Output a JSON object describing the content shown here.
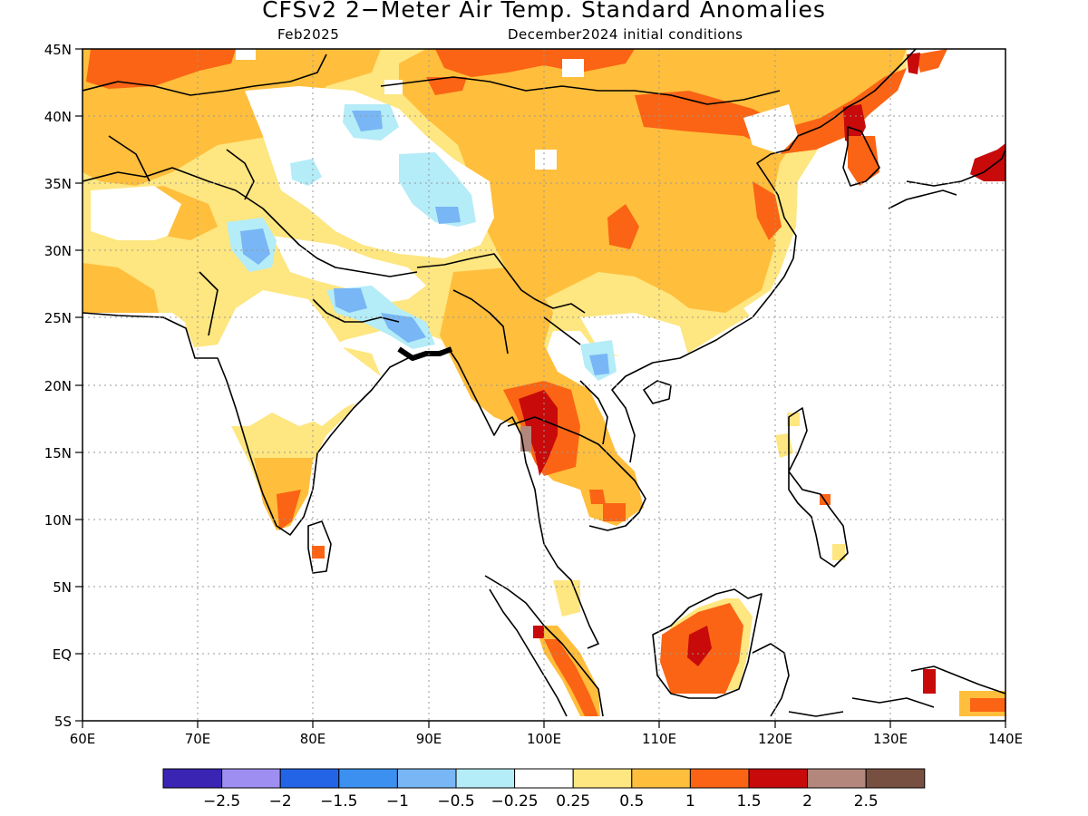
{
  "title": "CFSv2 2−Meter Air Temp. Standard Anomalies",
  "subtitle_left": "Feb2025",
  "subtitle_right": "December2024 initial conditions",
  "lon_labels": [
    "60E",
    "70E",
    "80E",
    "90E",
    "100E",
    "110E",
    "120E",
    "130E",
    "140E"
  ],
  "lat_labels": [
    "45N",
    "40N",
    "35N",
    "30N",
    "25N",
    "20N",
    "15N",
    "10N",
    "5N",
    "EQ",
    "5S"
  ],
  "colorbar": {
    "colors": [
      "#3a24b4",
      "#9f8ef2",
      "#2364e6",
      "#3c91f0",
      "#78b6f5",
      "#b4ecf8",
      "#ffffff",
      "#fee680",
      "#ffbe3c",
      "#fa6414",
      "#c80a0a",
      "#b4877d",
      "#785041"
    ],
    "labels": [
      "−2.5",
      "−2",
      "−1.5",
      "−1",
      "−0.5",
      "−0.25",
      "0.25",
      "0.5",
      "1",
      "1.5",
      "2",
      "2.5"
    ]
  },
  "legend_colors": {
    "above_025": "#fee680",
    "above_05": "#ffbe3c",
    "above_1": "#fa6414",
    "above_15": "#c80a0a",
    "above_2": "#b4877d",
    "below_025": "#b4ecf8",
    "below_05": "#78b6f5",
    "coastline": "#000000"
  }
}
